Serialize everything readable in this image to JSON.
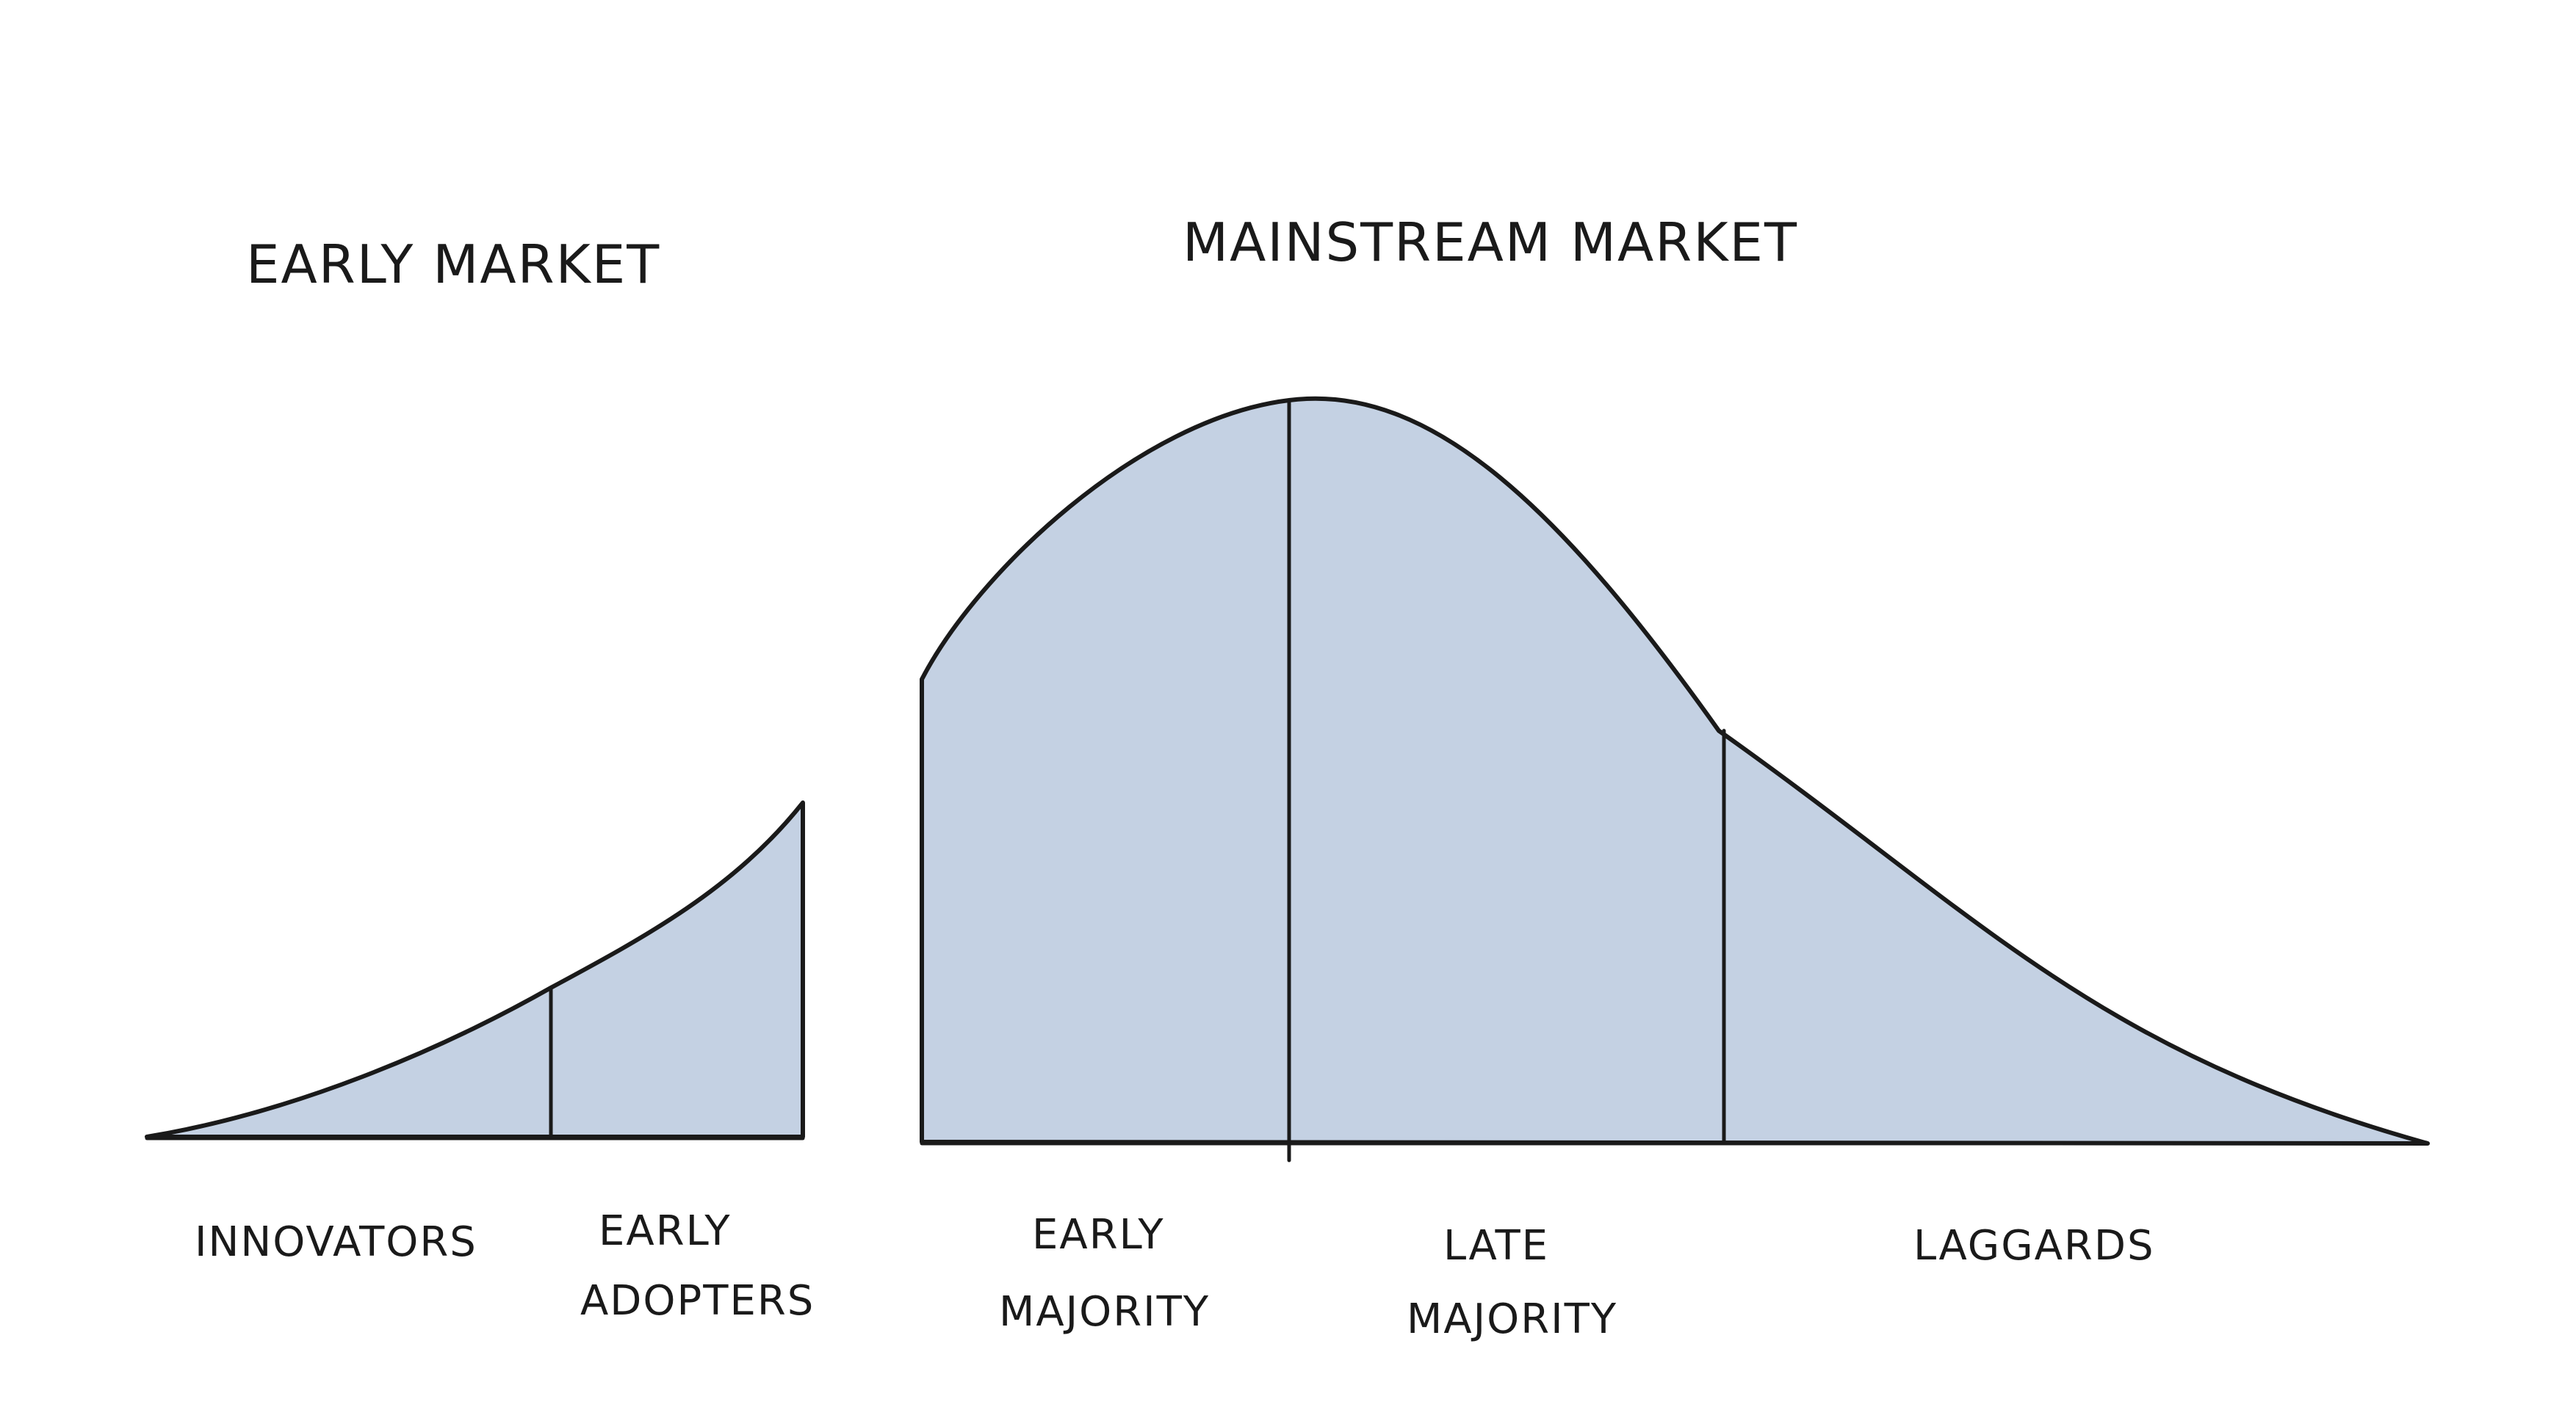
{
  "headings": {
    "early_market": "Early Market",
    "mainstream_market": "Mainstream Market"
  },
  "segments": {
    "innovators": "Innovators",
    "early_adopters_line1": "Early",
    "early_adopters_line2": "Adopters",
    "early_majority_line1": "Early",
    "early_majority_line2": "Majority",
    "late_majority_line1": "Late",
    "late_majority_line2": "Majority",
    "laggards": "Laggards"
  },
  "colors": {
    "fill": "#c4d1e3",
    "stroke": "#1a1a1a",
    "background": "#ffffff"
  }
}
